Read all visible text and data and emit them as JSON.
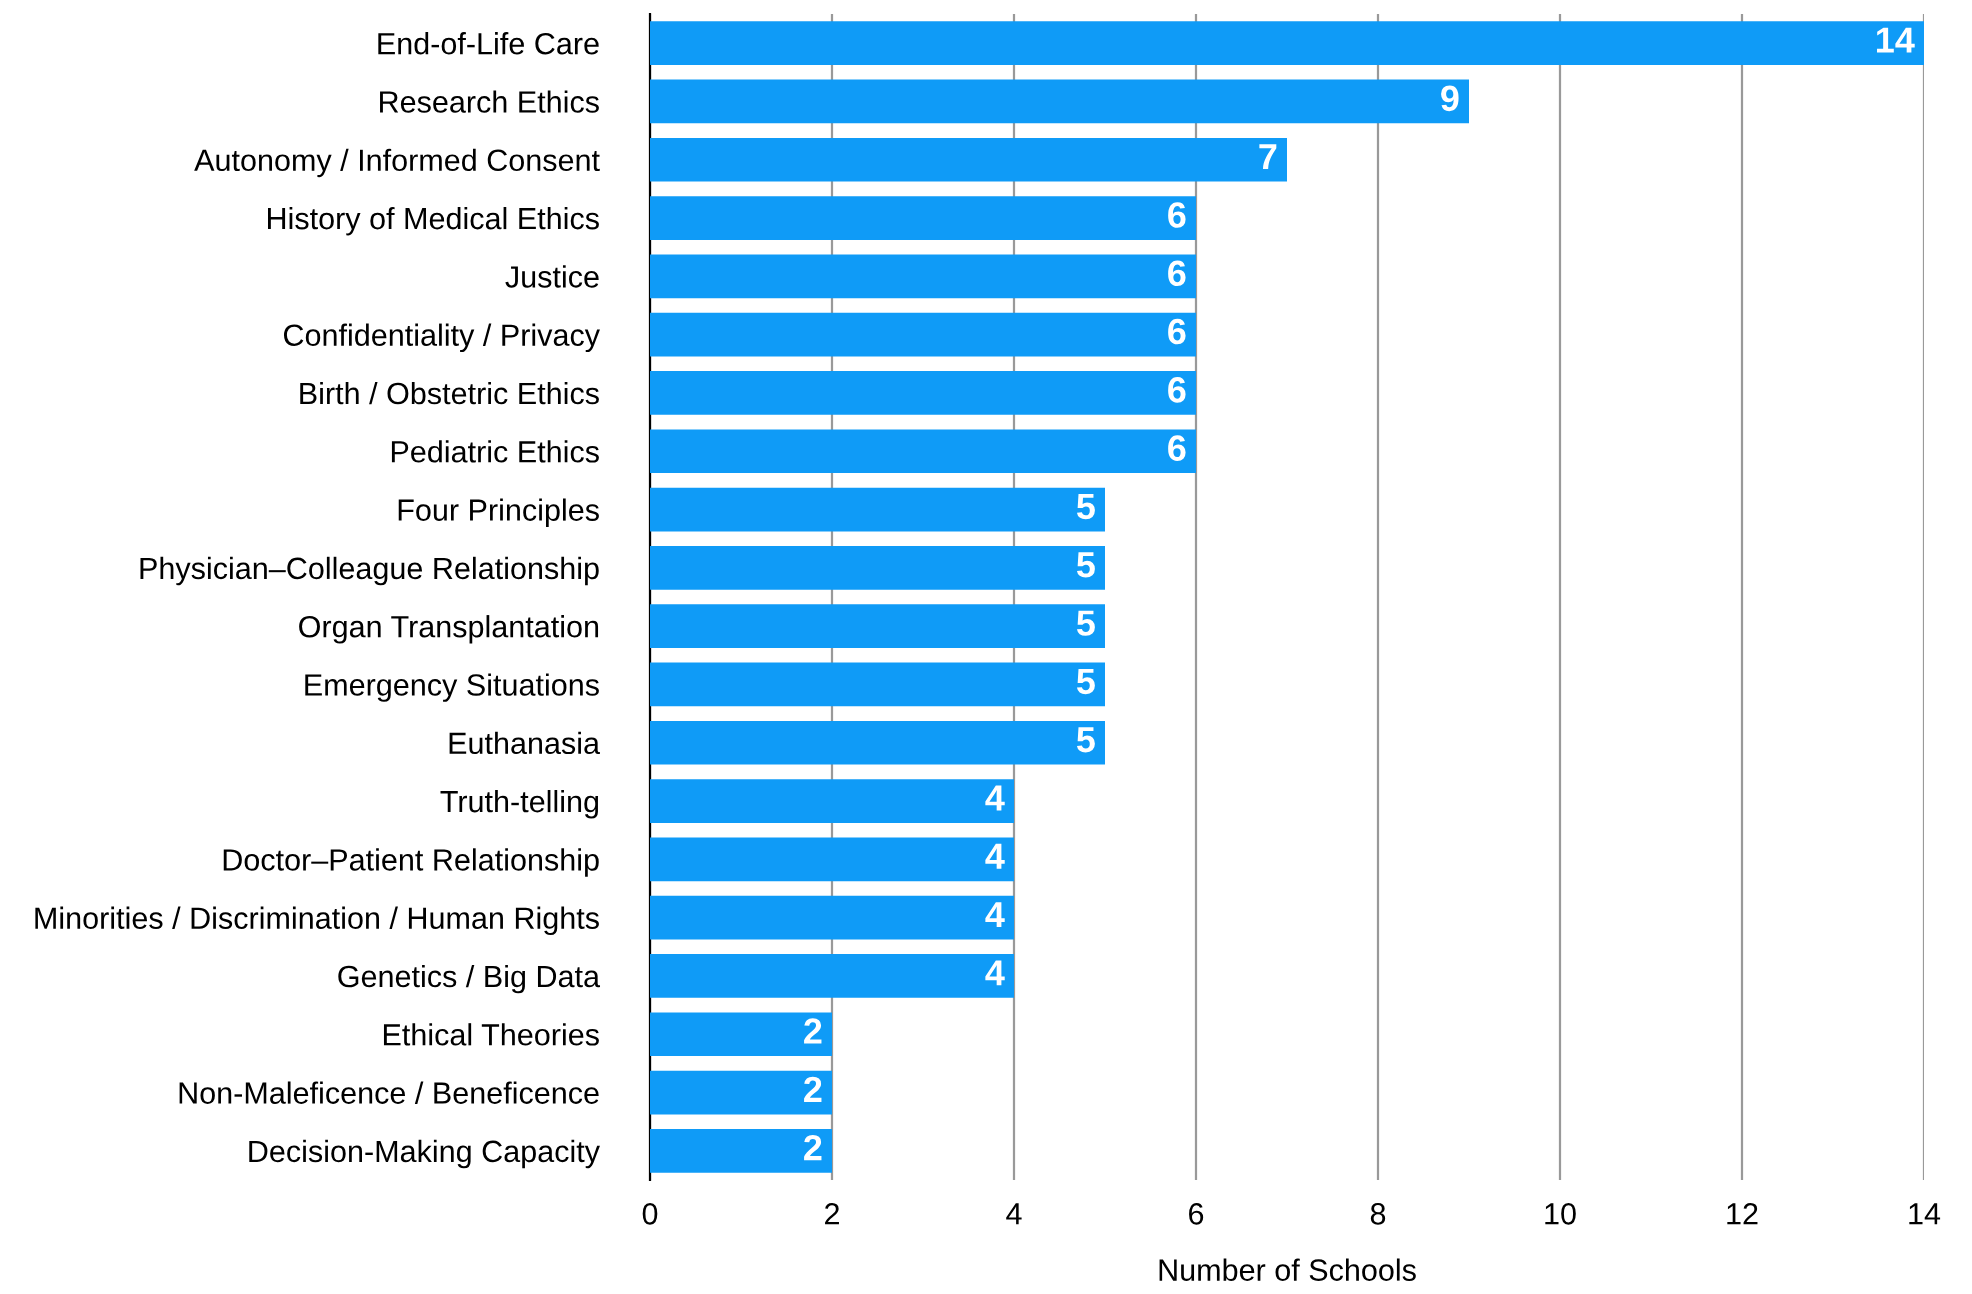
{
  "chart_data": {
    "type": "bar",
    "orientation": "horizontal",
    "xlabel": "Number of Schools",
    "categories": [
      "End-of-Life Care",
      "Research Ethics",
      "Autonomy / Informed Consent",
      "History of Medical Ethics",
      "Justice",
      "Confidentiality / Privacy",
      "Birth / Obstetric Ethics",
      "Pediatric Ethics",
      "Four Principles",
      "Physician–Colleague Relationship",
      "Organ Transplantation",
      "Emergency Situations",
      "Euthanasia",
      "Truth-telling",
      "Doctor–Patient Relationship",
      "Minorities / Discrimination / Human Rights",
      "Genetics / Big Data",
      "Ethical Theories",
      "Non-Maleficence / Beneficence",
      "Decision-Making Capacity"
    ],
    "values": [
      14,
      9,
      7,
      6,
      6,
      6,
      6,
      6,
      5,
      5,
      5,
      5,
      5,
      4,
      4,
      4,
      4,
      2,
      2,
      2
    ],
    "color": "#0f9bf7",
    "xlim": [
      0,
      14
    ],
    "xticks": [
      0,
      2,
      4,
      6,
      8,
      10,
      12,
      14
    ],
    "grid": "x",
    "data_labels": true
  }
}
